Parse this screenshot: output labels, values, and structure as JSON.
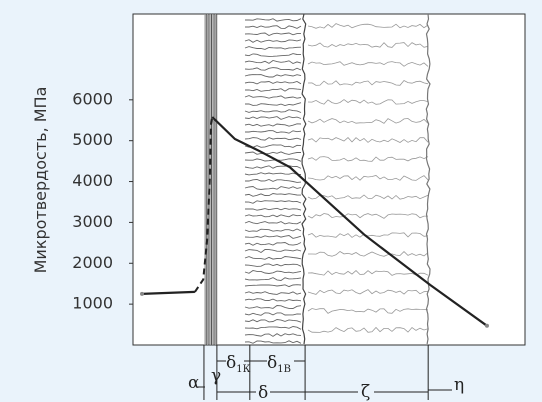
{
  "chart_data": {
    "type": "line",
    "y_label": "Микротвердость, МПа",
    "xlim": [
      0,
      100
    ],
    "ylim": [
      0,
      8100
    ],
    "yticks": [
      1000,
      2000,
      3000,
      4000,
      5000,
      6000
    ],
    "color": "#222",
    "series": [
      {
        "line_style": "dashed",
        "x": [
          15.8,
          17.9,
          18.9,
          19.6,
          19.9,
          20.2
        ],
        "values": [
          1300,
          1600,
          2570,
          4050,
          5400,
          5580
        ]
      },
      {
        "line_style": "solid",
        "x": [
          2.3,
          15.8
        ],
        "values": [
          1250,
          1300
        ]
      },
      {
        "line_style": "solid",
        "x": [
          20.2,
          26,
          32.4,
          40,
          59,
          75.8,
          90.3
        ],
        "values": [
          5580,
          5040,
          4740,
          4350,
          2700,
          1470,
          470
        ]
      }
    ],
    "boundaries": [
      18.1,
      21.4,
      29.8,
      43.9,
      75.3
    ],
    "regions": [
      {
        "label": "α"
      },
      {
        "label": "γ"
      },
      {
        "label": "δ",
        "sub": "1К"
      },
      {
        "label": "δ",
        "sub": "1В"
      },
      {
        "label": "δ"
      },
      {
        "label": "ζ"
      },
      {
        "label": "η"
      }
    ]
  }
}
